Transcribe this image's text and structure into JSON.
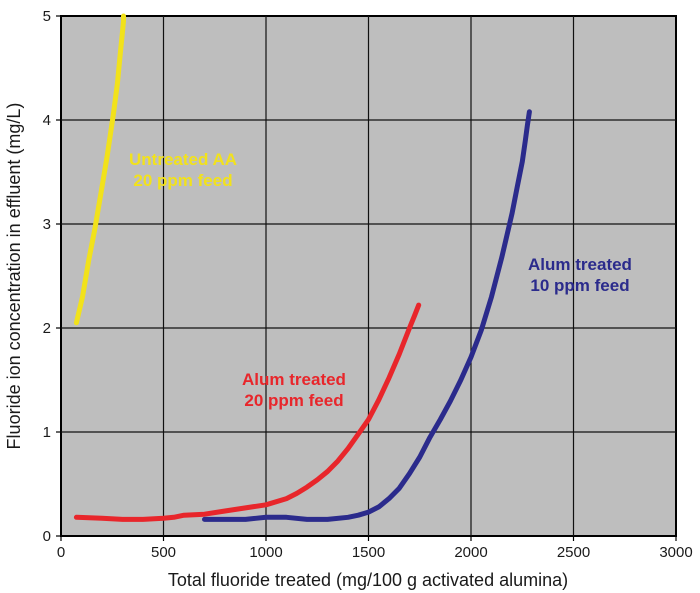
{
  "chart_data": {
    "type": "line",
    "xlabel": "Total fluoride treated (mg/100 g activated alumina)",
    "ylabel": "Fluoride ion concentration in effluent (mg/L)",
    "xlim": [
      0,
      3000
    ],
    "ylim": [
      0,
      5
    ],
    "xticks": [
      "0",
      "500",
      "1000",
      "1500",
      "2000",
      "2500",
      "3000"
    ],
    "yticks": [
      "0",
      "1",
      "2",
      "3",
      "4",
      "5"
    ],
    "grid": true,
    "plot_background": "#bebebe",
    "series": [
      {
        "color": "#f2e21b",
        "x": [
          75,
          105,
          135,
          165,
          195,
          225,
          255,
          275,
          290,
          300,
          305,
          305
        ],
        "y": [
          2.05,
          2.3,
          2.65,
          2.95,
          3.3,
          3.65,
          4.05,
          4.35,
          4.65,
          4.85,
          4.95,
          5.0
        ],
        "label_lines": [
          "Untreated AA",
          "20 ppm feed"
        ]
      },
      {
        "color": "#e8262b",
        "x": [
          75,
          200,
          300,
          400,
          500,
          550,
          600,
          700,
          800,
          900,
          1000,
          1100,
          1150,
          1200,
          1250,
          1300,
          1350,
          1400,
          1450,
          1500,
          1550,
          1600,
          1650,
          1700,
          1725,
          1745
        ],
        "y": [
          0.18,
          0.17,
          0.16,
          0.16,
          0.17,
          0.18,
          0.2,
          0.21,
          0.24,
          0.27,
          0.3,
          0.36,
          0.41,
          0.47,
          0.54,
          0.62,
          0.72,
          0.84,
          0.98,
          1.12,
          1.31,
          1.52,
          1.75,
          2.0,
          2.12,
          2.22
        ],
        "label_lines": [
          "Alum treated",
          "20 ppm feed"
        ]
      },
      {
        "color": "#2b2b8c",
        "x": [
          700,
          800,
          900,
          950,
          1000,
          1100,
          1200,
          1300,
          1400,
          1450,
          1500,
          1550,
          1600,
          1650,
          1700,
          1750,
          1800,
          1850,
          1900,
          1950,
          2000,
          2050,
          2100,
          2150,
          2200,
          2225,
          2250,
          2265,
          2275,
          2285
        ],
        "y": [
          0.16,
          0.16,
          0.16,
          0.17,
          0.18,
          0.18,
          0.16,
          0.16,
          0.18,
          0.2,
          0.23,
          0.28,
          0.36,
          0.46,
          0.6,
          0.76,
          0.95,
          1.12,
          1.3,
          1.5,
          1.72,
          1.98,
          2.3,
          2.68,
          3.1,
          3.35,
          3.6,
          3.8,
          3.95,
          4.08
        ],
        "label_lines": [
          "Alum treated",
          "10 ppm feed"
        ]
      }
    ]
  }
}
